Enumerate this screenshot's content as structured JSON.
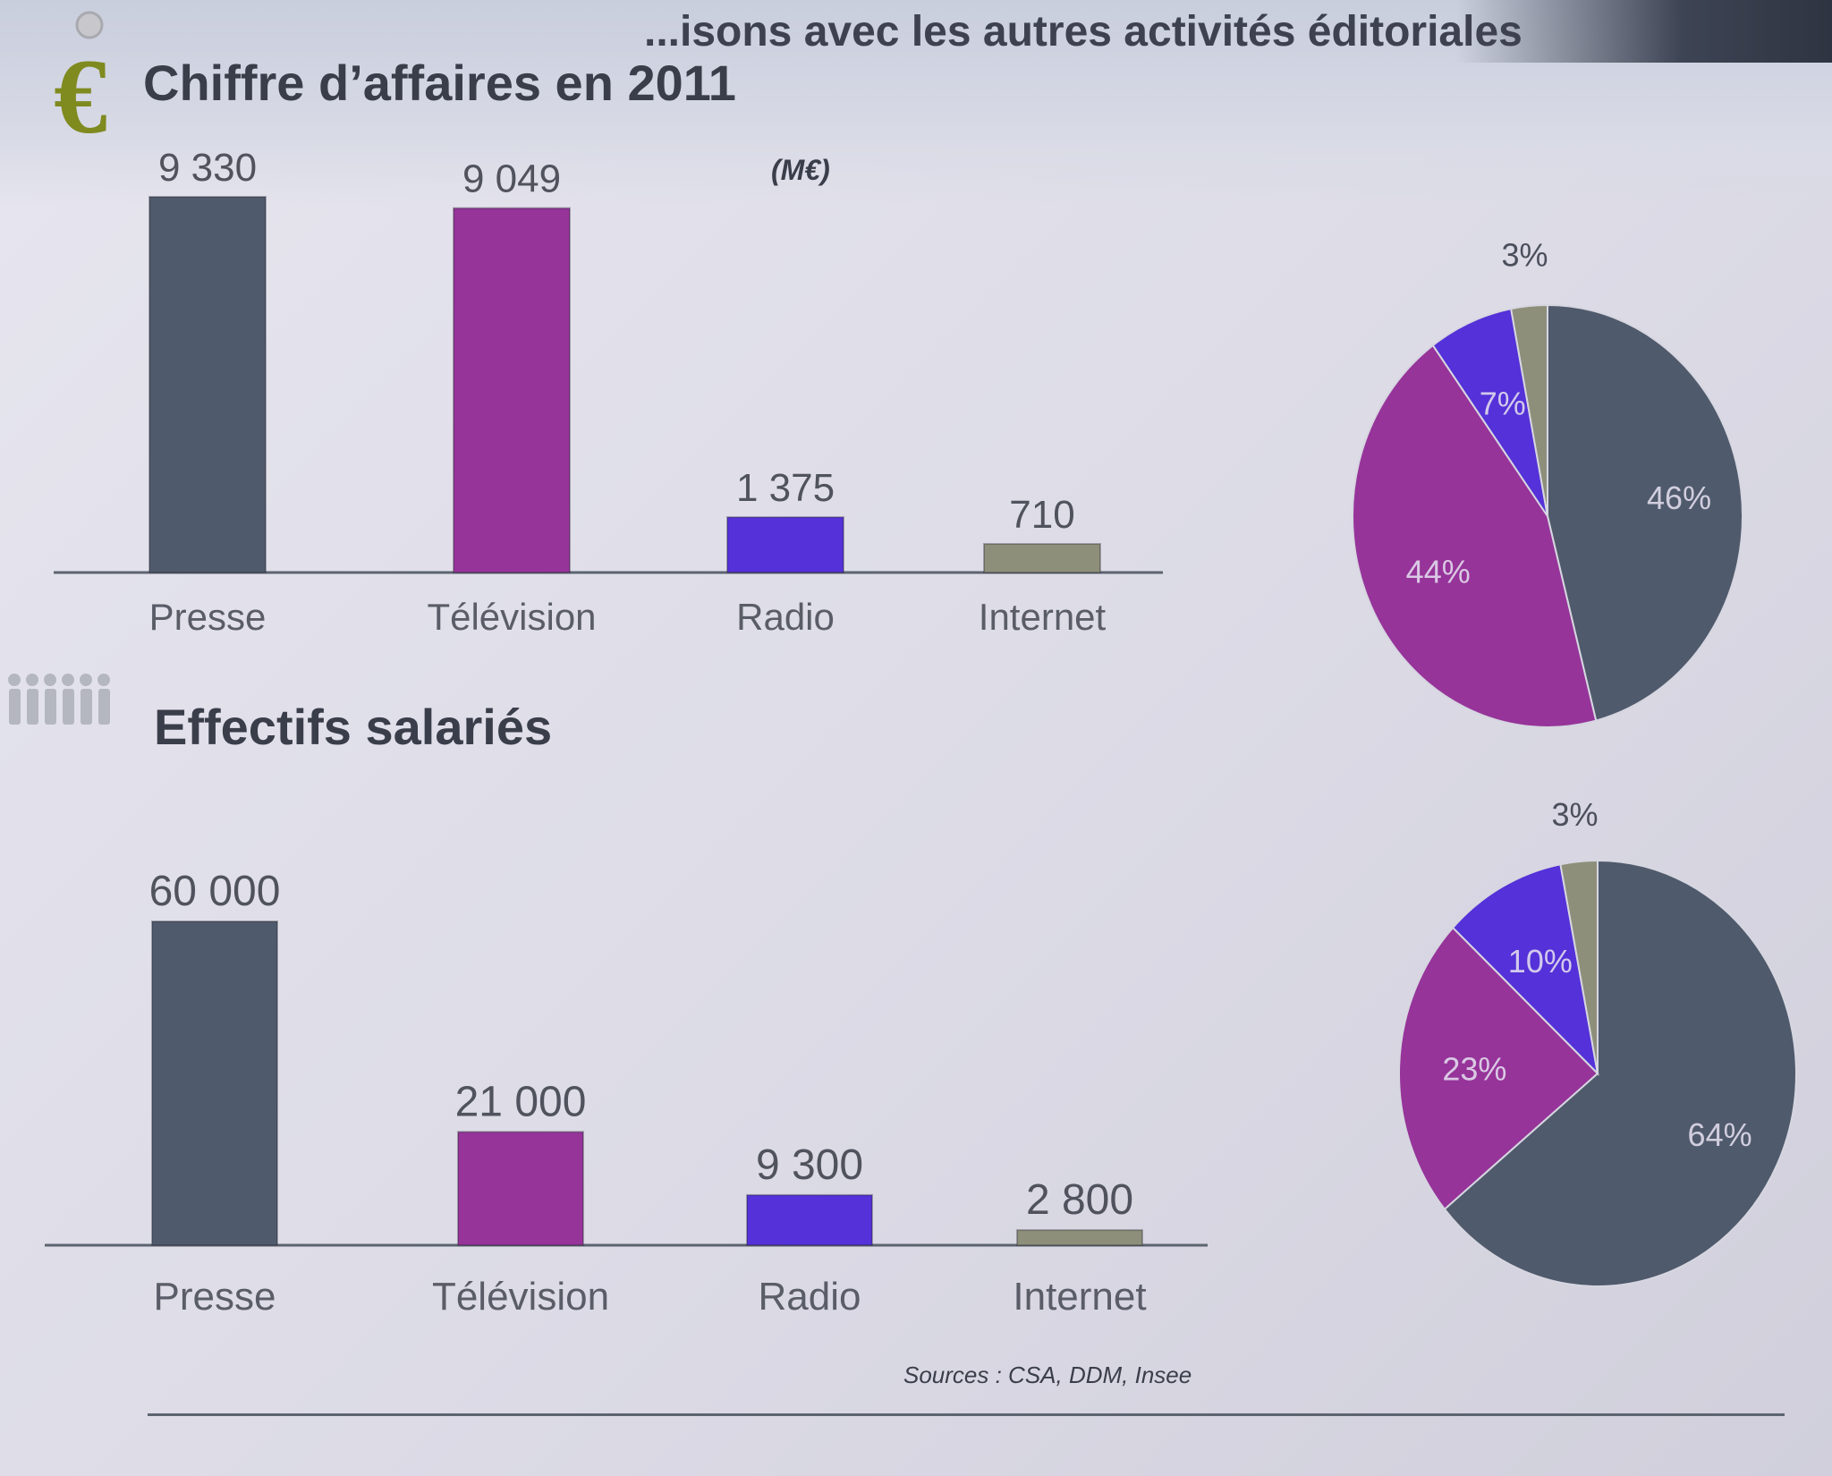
{
  "slide": {
    "title": "...isons avec les autres activités éditoriales",
    "sources": "Sources : CSA, DDM, Insee"
  },
  "sections": {
    "revenue_title": "Chiffre d’affaires en 2011",
    "revenue_unit": "(M€)",
    "staff_title": "Effectifs salariés"
  },
  "colors": {
    "presse": "#4f5a6c",
    "television": "#96349a",
    "radio": "#5431d8",
    "internet": "#8e8f7a"
  },
  "icons": [
    "euro-icon",
    "people-group-icon"
  ],
  "chart_data": [
    {
      "type": "bar",
      "title": "Chiffre d’affaires en 2011",
      "categories": [
        "Presse",
        "Télévision",
        "Radio",
        "Internet"
      ],
      "values": [
        9330,
        9049,
        1375,
        710
      ],
      "value_labels": [
        "9 330",
        "9 049",
        "1 375",
        "710"
      ],
      "ylim": [
        0,
        9330
      ]
    },
    {
      "type": "pie",
      "categories": [
        "Presse",
        "Télévision",
        "Radio",
        "Internet"
      ],
      "values": [
        46,
        44,
        7,
        3
      ],
      "labels": [
        "46%",
        "44%",
        "7%",
        "3%"
      ]
    },
    {
      "type": "bar",
      "title": "Effectifs salariés",
      "categories": [
        "Presse",
        "Télévision",
        "Radio",
        "Internet"
      ],
      "values": [
        60000,
        21000,
        9300,
        2800
      ],
      "value_labels": [
        "60 000",
        "21 000",
        "9 300",
        "2 800"
      ],
      "ylim": [
        0,
        60000
      ]
    },
    {
      "type": "pie",
      "categories": [
        "Presse",
        "Télévision",
        "Radio",
        "Internet"
      ],
      "values": [
        64,
        23,
        10,
        3
      ],
      "labels": [
        "64%",
        "23%",
        "10%",
        "3%"
      ]
    }
  ]
}
